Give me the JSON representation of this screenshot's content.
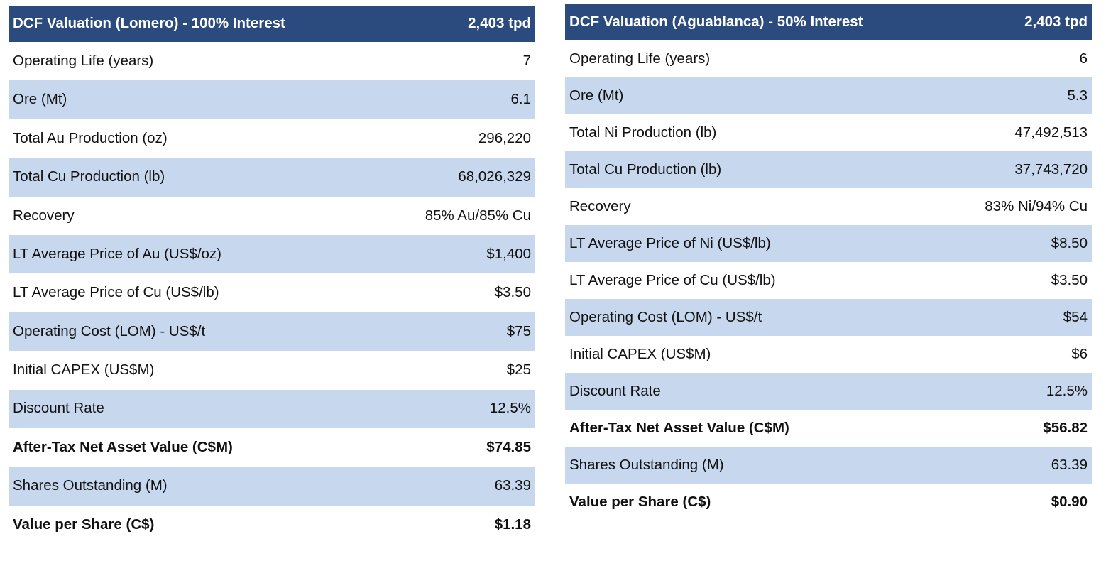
{
  "tables": [
    {
      "title": "DCF Valuation (Lomero) - 100% Interest",
      "capacity": "2,403 tpd",
      "rows": [
        {
          "label": "Operating Life (years)",
          "value": "7",
          "shaded": false,
          "bold": false
        },
        {
          "label": "Ore (Mt)",
          "value": "6.1",
          "shaded": true,
          "bold": false
        },
        {
          "label": "Total Au Production (oz)",
          "value": "296,220",
          "shaded": false,
          "bold": false
        },
        {
          "label": "Total Cu Production (lb)",
          "value": "68,026,329",
          "shaded": true,
          "bold": false
        },
        {
          "label": "Recovery",
          "value": "85% Au/85% Cu",
          "shaded": false,
          "bold": false
        },
        {
          "label": "LT Average Price of Au (US$/oz)",
          "value": "$1,400",
          "shaded": true,
          "bold": false
        },
        {
          "label": "LT Average Price of Cu (US$/lb)",
          "value": "$3.50",
          "shaded": false,
          "bold": false
        },
        {
          "label": "Operating Cost (LOM) - US$/t",
          "value": "$75",
          "shaded": true,
          "bold": false
        },
        {
          "label": "Initial CAPEX (US$M)",
          "value": "$25",
          "shaded": false,
          "bold": false
        },
        {
          "label": "Discount Rate",
          "value": "12.5%",
          "shaded": true,
          "bold": false
        },
        {
          "label": "After-Tax Net Asset Value (C$M)",
          "value": "$74.85",
          "shaded": false,
          "bold": true
        },
        {
          "label": "Shares Outstanding (M)",
          "value": "63.39",
          "shaded": true,
          "bold": false
        },
        {
          "label": "Value per Share (C$)",
          "value": "$1.18",
          "shaded": false,
          "bold": true
        }
      ]
    },
    {
      "title": "DCF Valuation (Aguablanca) - 50% Interest",
      "capacity": "2,403 tpd",
      "rows": [
        {
          "label": "Operating Life (years)",
          "value": "6",
          "shaded": false,
          "bold": false
        },
        {
          "label": "Ore (Mt)",
          "value": "5.3",
          "shaded": true,
          "bold": false
        },
        {
          "label": "Total Ni Production (lb)",
          "value": "47,492,513",
          "shaded": false,
          "bold": false
        },
        {
          "label": "Total Cu Production (lb)",
          "value": "37,743,720",
          "shaded": true,
          "bold": false
        },
        {
          "label": "Recovery",
          "value": "83% Ni/94% Cu",
          "shaded": false,
          "bold": false
        },
        {
          "label": "LT Average Price of Ni (US$/lb)",
          "value": "$8.50",
          "shaded": true,
          "bold": false
        },
        {
          "label": "LT Average Price of Cu (US$/lb)",
          "value": "$3.50",
          "shaded": false,
          "bold": false
        },
        {
          "label": "Operating Cost (LOM) - US$/t",
          "value": "$54",
          "shaded": true,
          "bold": false
        },
        {
          "label": "Initial CAPEX (US$M)",
          "value": "$6",
          "shaded": false,
          "bold": false
        },
        {
          "label": "Discount Rate",
          "value": "12.5%",
          "shaded": true,
          "bold": false
        },
        {
          "label": "After-Tax Net Asset Value (C$M)",
          "value": "$56.82",
          "shaded": false,
          "bold": true
        },
        {
          "label": "Shares Outstanding (M)",
          "value": "63.39",
          "shaded": true,
          "bold": false
        },
        {
          "label": "Value per Share (C$)",
          "value": "$0.90",
          "shaded": false,
          "bold": true
        }
      ]
    }
  ],
  "colors": {
    "header_bg": "#2b4a7d",
    "shade_bg": "#c6d7ee"
  }
}
